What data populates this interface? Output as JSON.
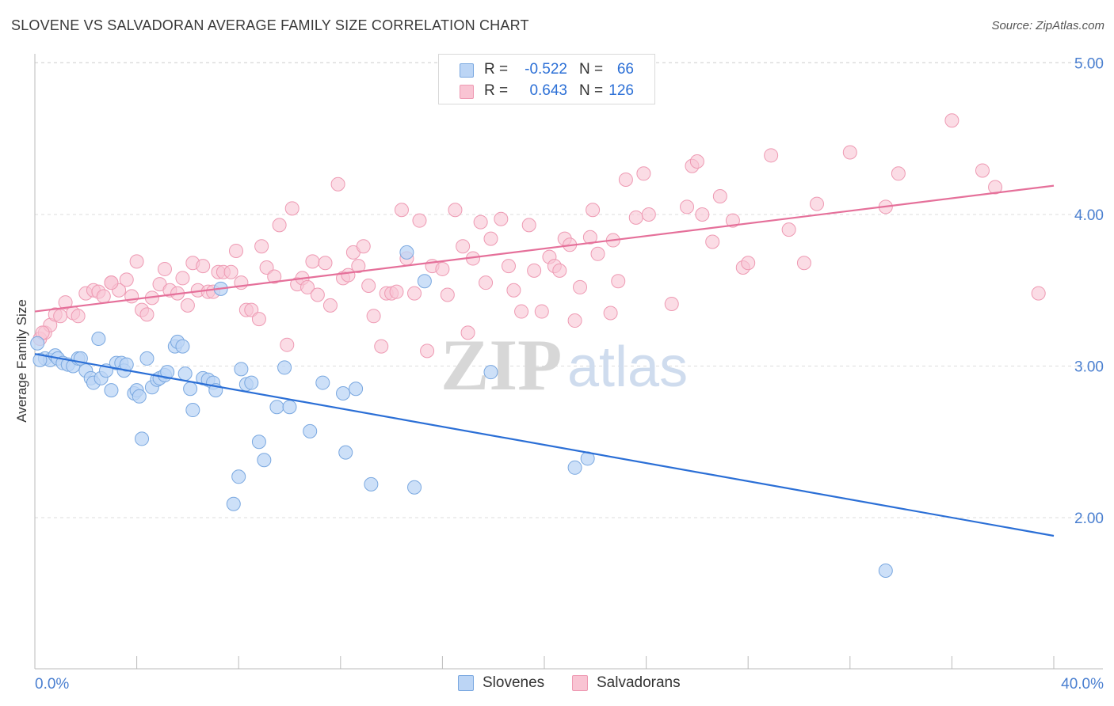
{
  "title": "SLOVENE VS SALVADORAN AVERAGE FAMILY SIZE CORRELATION CHART",
  "source": "Source: ZipAtlas.com",
  "watermark": {
    "zip": "ZIP",
    "atlas": "atlas"
  },
  "colors": {
    "blue_fill": "#bcd5f5",
    "blue_stroke": "#7aa8e0",
    "blue_line": "#2b6fd6",
    "pink_fill": "#f9c4d3",
    "pink_stroke": "#ee9ab3",
    "pink_line": "#e5709a",
    "axis_text": "#4a7fd0",
    "grid": "#dddddd"
  },
  "legend": {
    "rows": [
      {
        "r_label": "R =",
        "r_value": "-0.522",
        "n_label": "N =",
        "n_value": "66",
        "swatch": "blue"
      },
      {
        "r_label": "R =",
        "r_value": "0.643",
        "n_label": "N =",
        "n_value": "126",
        "swatch": "pink"
      }
    ]
  },
  "bottom_legend": {
    "slovenes": "Slovenes",
    "salvadorans": "Salvadorans"
  },
  "chart_data": {
    "type": "scatter",
    "title": "SLOVENE VS SALVADORAN AVERAGE FAMILY SIZE CORRELATION CHART",
    "xlabel": "",
    "ylabel": "Average Family Size",
    "xlim": [
      0,
      40
    ],
    "ylim": [
      1.1,
      5.2
    ],
    "x_tick_labels": [
      "0.0%",
      "40.0%"
    ],
    "y_ticks": [
      2.0,
      3.0,
      4.0,
      5.0
    ],
    "y_tick_labels": [
      "2.00",
      "3.00",
      "4.00",
      "5.00"
    ],
    "grid": true,
    "legend_position": "top-center",
    "series": [
      {
        "name": "Slovenes",
        "color": "#7aa8e0",
        "trend": {
          "x": [
            0,
            40
          ],
          "y": [
            3.08,
            1.88
          ]
        },
        "points": [
          [
            0.1,
            3.15
          ],
          [
            0.4,
            3.05
          ],
          [
            0.6,
            3.04
          ],
          [
            0.8,
            3.07
          ],
          [
            0.9,
            3.05
          ],
          [
            1.1,
            3.02
          ],
          [
            1.3,
            3.01
          ],
          [
            1.5,
            3.0
          ],
          [
            1.7,
            3.05
          ],
          [
            1.8,
            3.05
          ],
          [
            2.0,
            2.97
          ],
          [
            2.2,
            2.92
          ],
          [
            2.3,
            2.89
          ],
          [
            2.5,
            3.18
          ],
          [
            2.6,
            2.92
          ],
          [
            2.8,
            2.97
          ],
          [
            3.0,
            2.84
          ],
          [
            3.2,
            3.02
          ],
          [
            3.4,
            3.02
          ],
          [
            3.5,
            2.97
          ],
          [
            3.6,
            3.01
          ],
          [
            3.9,
            2.82
          ],
          [
            4.0,
            2.84
          ],
          [
            4.1,
            2.8
          ],
          [
            4.2,
            2.52
          ],
          [
            4.4,
            3.05
          ],
          [
            4.6,
            2.86
          ],
          [
            4.8,
            2.91
          ],
          [
            4.9,
            2.92
          ],
          [
            5.1,
            2.94
          ],
          [
            5.2,
            2.96
          ],
          [
            5.5,
            3.13
          ],
          [
            5.6,
            3.16
          ],
          [
            5.8,
            3.13
          ],
          [
            5.9,
            2.95
          ],
          [
            6.1,
            2.85
          ],
          [
            6.2,
            2.71
          ],
          [
            6.6,
            2.92
          ],
          [
            6.8,
            2.91
          ],
          [
            7.0,
            2.89
          ],
          [
            7.1,
            2.84
          ],
          [
            7.3,
            3.51
          ],
          [
            7.8,
            2.09
          ],
          [
            8.0,
            2.27
          ],
          [
            8.1,
            2.98
          ],
          [
            8.3,
            2.88
          ],
          [
            8.5,
            2.89
          ],
          [
            8.8,
            2.5
          ],
          [
            9.0,
            2.38
          ],
          [
            9.5,
            2.73
          ],
          [
            9.8,
            2.99
          ],
          [
            10.0,
            2.73
          ],
          [
            10.8,
            2.57
          ],
          [
            11.3,
            2.89
          ],
          [
            12.1,
            2.82
          ],
          [
            12.2,
            2.43
          ],
          [
            12.6,
            2.85
          ],
          [
            13.2,
            2.22
          ],
          [
            14.6,
            3.75
          ],
          [
            14.9,
            2.2
          ],
          [
            15.3,
            3.56
          ],
          [
            17.9,
            2.96
          ],
          [
            21.2,
            2.33
          ],
          [
            21.7,
            2.39
          ],
          [
            33.4,
            1.65
          ],
          [
            0.2,
            3.04
          ]
        ]
      },
      {
        "name": "Salvadorans",
        "color": "#ee9ab3",
        "trend": {
          "x": [
            0,
            40
          ],
          "y": [
            3.36,
            4.19
          ]
        },
        "points": [
          [
            0.2,
            3.18
          ],
          [
            0.4,
            3.22
          ],
          [
            0.6,
            3.27
          ],
          [
            0.8,
            3.34
          ],
          [
            1.0,
            3.33
          ],
          [
            1.2,
            3.42
          ],
          [
            1.5,
            3.35
          ],
          [
            1.7,
            3.33
          ],
          [
            2.0,
            3.48
          ],
          [
            2.3,
            3.5
          ],
          [
            2.5,
            3.49
          ],
          [
            2.7,
            3.46
          ],
          [
            3.0,
            3.55
          ],
          [
            3.3,
            3.5
          ],
          [
            3.6,
            3.57
          ],
          [
            3.8,
            3.46
          ],
          [
            4.0,
            3.69
          ],
          [
            4.2,
            3.37
          ],
          [
            4.4,
            3.34
          ],
          [
            4.6,
            3.45
          ],
          [
            4.9,
            3.54
          ],
          [
            5.1,
            3.64
          ],
          [
            5.3,
            3.5
          ],
          [
            5.6,
            3.48
          ],
          [
            5.8,
            3.58
          ],
          [
            6.0,
            3.4
          ],
          [
            6.2,
            3.68
          ],
          [
            6.4,
            3.5
          ],
          [
            6.6,
            3.66
          ],
          [
            6.8,
            3.49
          ],
          [
            7.0,
            3.49
          ],
          [
            7.2,
            3.62
          ],
          [
            7.4,
            3.62
          ],
          [
            7.7,
            3.62
          ],
          [
            7.9,
            3.76
          ],
          [
            8.1,
            3.55
          ],
          [
            8.3,
            3.37
          ],
          [
            8.5,
            3.37
          ],
          [
            8.8,
            3.31
          ],
          [
            8.9,
            3.79
          ],
          [
            9.1,
            3.65
          ],
          [
            9.4,
            3.59
          ],
          [
            9.6,
            3.93
          ],
          [
            9.9,
            3.14
          ],
          [
            10.1,
            4.04
          ],
          [
            10.3,
            3.54
          ],
          [
            10.5,
            3.58
          ],
          [
            10.7,
            3.52
          ],
          [
            10.9,
            3.69
          ],
          [
            11.1,
            3.47
          ],
          [
            11.4,
            3.68
          ],
          [
            11.6,
            3.4
          ],
          [
            11.9,
            4.2
          ],
          [
            12.1,
            3.58
          ],
          [
            12.3,
            3.6
          ],
          [
            12.5,
            3.75
          ],
          [
            12.7,
            3.66
          ],
          [
            12.9,
            3.79
          ],
          [
            13.1,
            3.53
          ],
          [
            13.3,
            3.33
          ],
          [
            13.6,
            3.13
          ],
          [
            13.8,
            3.48
          ],
          [
            14.0,
            3.48
          ],
          [
            14.2,
            3.49
          ],
          [
            14.4,
            4.03
          ],
          [
            14.6,
            3.71
          ],
          [
            14.9,
            3.48
          ],
          [
            15.1,
            3.96
          ],
          [
            15.4,
            3.1
          ],
          [
            15.6,
            3.66
          ],
          [
            16.0,
            3.64
          ],
          [
            16.2,
            3.47
          ],
          [
            16.5,
            4.03
          ],
          [
            16.8,
            3.79
          ],
          [
            17.0,
            3.22
          ],
          [
            17.2,
            3.71
          ],
          [
            17.5,
            3.95
          ],
          [
            17.7,
            3.55
          ],
          [
            17.9,
            3.84
          ],
          [
            18.3,
            3.97
          ],
          [
            18.6,
            3.66
          ],
          [
            18.8,
            3.5
          ],
          [
            19.1,
            3.36
          ],
          [
            19.4,
            3.93
          ],
          [
            19.6,
            3.63
          ],
          [
            19.9,
            3.36
          ],
          [
            20.2,
            3.72
          ],
          [
            20.4,
            3.66
          ],
          [
            20.6,
            3.63
          ],
          [
            20.8,
            3.84
          ],
          [
            21.0,
            3.8
          ],
          [
            21.2,
            3.3
          ],
          [
            21.4,
            3.52
          ],
          [
            21.8,
            3.85
          ],
          [
            21.9,
            4.03
          ],
          [
            22.1,
            3.74
          ],
          [
            22.6,
            3.35
          ],
          [
            22.7,
            3.83
          ],
          [
            22.9,
            3.56
          ],
          [
            23.2,
            4.23
          ],
          [
            23.6,
            3.98
          ],
          [
            23.9,
            4.27
          ],
          [
            24.1,
            4.0
          ],
          [
            25.0,
            3.41
          ],
          [
            25.6,
            4.05
          ],
          [
            25.8,
            4.32
          ],
          [
            26.0,
            4.35
          ],
          [
            26.2,
            4.0
          ],
          [
            26.6,
            3.82
          ],
          [
            26.9,
            4.12
          ],
          [
            27.4,
            3.96
          ],
          [
            27.8,
            3.65
          ],
          [
            28.0,
            3.68
          ],
          [
            28.9,
            4.39
          ],
          [
            29.6,
            3.9
          ],
          [
            30.2,
            3.68
          ],
          [
            30.7,
            4.07
          ],
          [
            32.0,
            4.41
          ],
          [
            33.4,
            4.05
          ],
          [
            33.9,
            4.27
          ],
          [
            36.0,
            4.62
          ],
          [
            37.2,
            4.29
          ],
          [
            37.7,
            4.18
          ],
          [
            39.4,
            3.48
          ],
          [
            0.3,
            3.22
          ],
          [
            3.0,
            3.55
          ]
        ]
      }
    ]
  }
}
